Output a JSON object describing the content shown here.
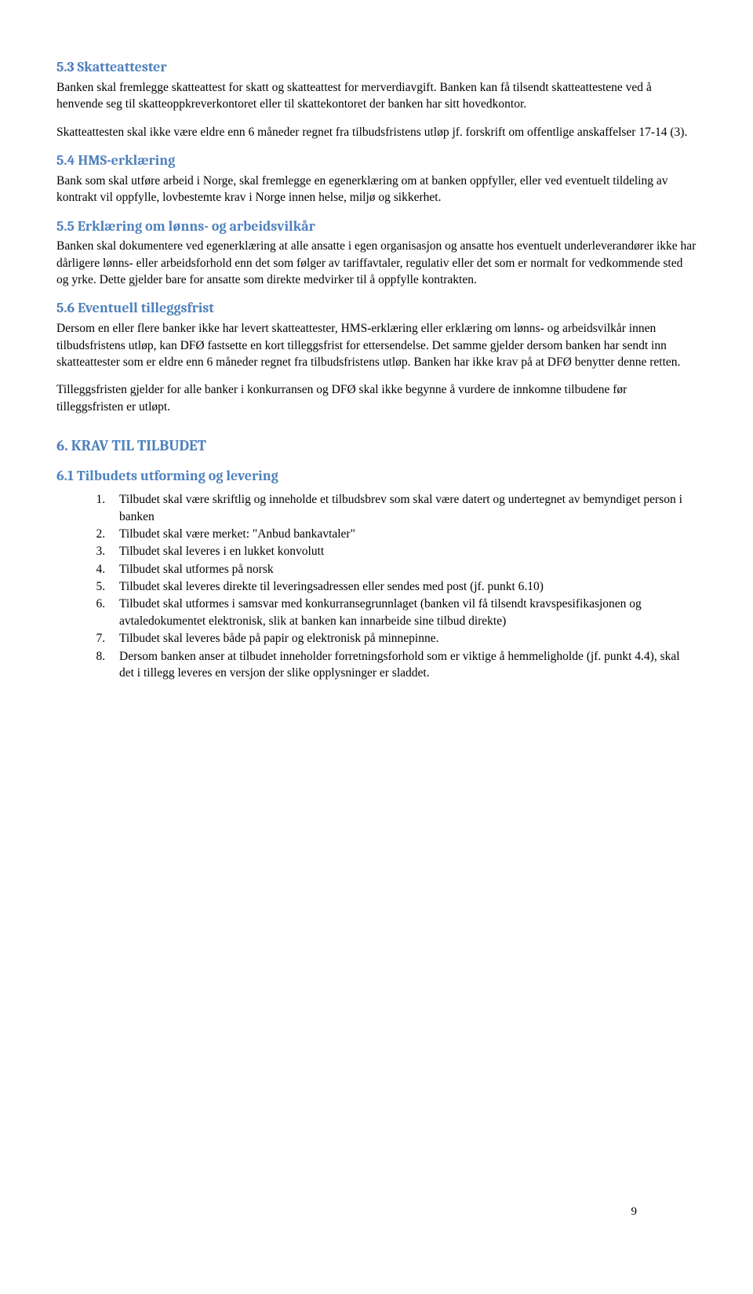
{
  "colors": {
    "heading": "#4f81bd",
    "body_text": "#000000",
    "background": "#ffffff"
  },
  "typography": {
    "body_font": "Times New Roman",
    "heading_font": "Cambria",
    "body_size_pt": 12,
    "heading3_size_pt": 13,
    "heading2_size_pt": 14
  },
  "s53": {
    "heading": "5.3  Skatteattester",
    "p1": "Banken skal fremlegge skatteattest for skatt og skatteattest for merverdiavgift. Banken kan få tilsendt skatteattestene ved å henvende seg til skatteoppkreverkontoret eller til skattekontoret der banken har sitt hovedkontor.",
    "p2": "Skatteattesten skal ikke være eldre enn 6 måneder regnet fra tilbudsfristens utløp jf. forskrift om offentlige anskaffelser 17-14 (3)."
  },
  "s54": {
    "heading": "5.4  HMS-erklæring",
    "p1": "Bank som skal utføre arbeid i Norge, skal fremlegge en egenerklæring om at banken oppfyller, eller ved eventuelt tildeling av kontrakt vil oppfylle, lovbestemte krav i Norge innen helse, miljø og sikkerhet."
  },
  "s55": {
    "heading": "5.5  Erklæring om lønns- og arbeidsvilkår",
    "p1": "Banken skal dokumentere ved egenerklæring at alle ansatte i egen organisasjon og ansatte hos eventuelt underleverandører ikke har dårligere lønns- eller arbeidsforhold enn det som følger av tariffavtaler, regulativ eller det som er normalt for vedkommende sted og yrke. Dette gjelder bare for ansatte som direkte medvirker til å oppfylle kontrakten."
  },
  "s56": {
    "heading": "5.6  Eventuell tilleggsfrist",
    "p1": "Dersom en eller flere banker ikke har levert skatteattester, HMS-erklæring eller erklæring om lønns- og arbeidsvilkår innen tilbudsfristens utløp, kan DFØ fastsette en kort tilleggsfrist for ettersendelse. Det samme gjelder dersom banken har sendt inn skatteattester som er eldre enn 6 måneder regnet fra tilbudsfristens utløp. Banken har ikke krav på at DFØ benytter denne retten.",
    "p2": "Tilleggsfristen gjelder for alle banker i konkurransen og DFØ skal ikke begynne å vurdere de innkomne tilbudene før tilleggsfristen er utløpt."
  },
  "s6": {
    "heading": "6.  KRAV TIL TILBUDET"
  },
  "s61": {
    "heading": "6.1  Tilbudets utforming og levering",
    "items": {
      "i1": "Tilbudet skal være skriftlig og inneholde et tilbudsbrev som skal være datert og undertegnet av bemyndiget person i banken",
      "i2": "Tilbudet skal være merket: \"Anbud bankavtaler\"",
      "i3": "Tilbudet skal leveres i en lukket konvolutt",
      "i4": "Tilbudet skal utformes på norsk",
      "i5": "Tilbudet skal leveres direkte til leveringsadressen eller sendes med post (jf. punkt 6.10)",
      "i6": "Tilbudet skal utformes i samsvar med konkurransegrunnlaget (banken vil få tilsendt kravspesifikasjonen og avtaledokumentet elektronisk, slik at banken kan innarbeide sine tilbud direkte)",
      "i7": "Tilbudet skal leveres både på papir og elektronisk på minnepinne.",
      "i8": "Dersom banken anser at tilbudet inneholder forretningsforhold som er viktige å hemmeligholde (jf. punkt 4.4), skal det i tillegg leveres en versjon der slike opplysninger er sladdet."
    }
  },
  "page_number": "9"
}
